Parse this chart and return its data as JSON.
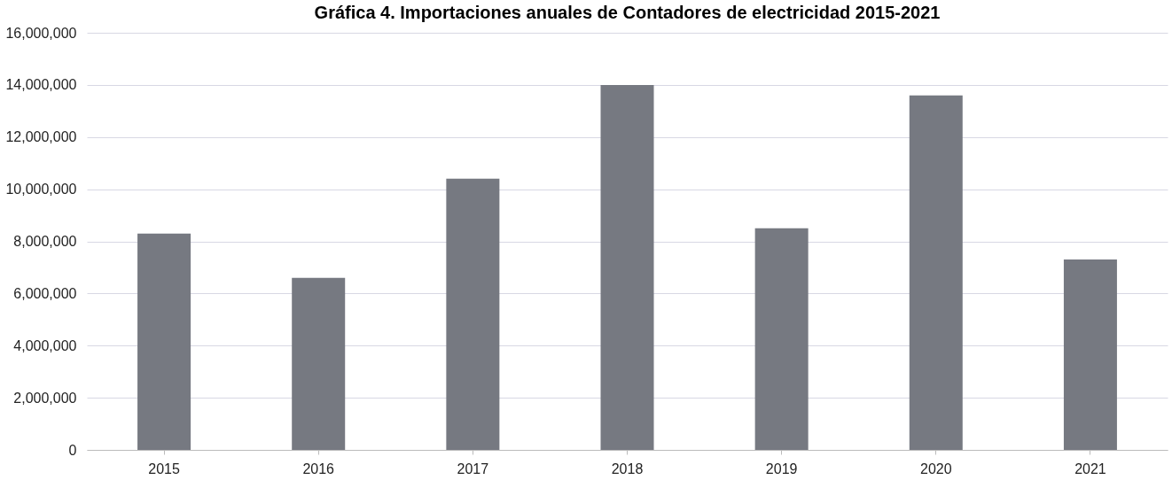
{
  "chart_data": {
    "type": "bar",
    "title": "Gráfica 4. Importaciones anuales de Contadores de electricidad 2015-2021",
    "categories": [
      "2015",
      "2016",
      "2017",
      "2018",
      "2019",
      "2020",
      "2021"
    ],
    "values": [
      8300000,
      6600000,
      10400000,
      14000000,
      8500000,
      13600000,
      7300000
    ],
    "color": "#767981",
    "ylim": [
      0,
      16000000
    ],
    "yticks": [
      0,
      {
        "value": 2000000,
        "label": "2,000,000"
      },
      {
        "value": 4000000,
        "label": "4,000,000"
      },
      {
        "value": 6000000,
        "label": "6,000,000"
      },
      {
        "value": 8000000,
        "label": "8,000,000"
      },
      {
        "value": 10000000,
        "label": "10,000,000"
      },
      {
        "value": 12000000,
        "label": "12,000,000"
      },
      {
        "value": 14000000,
        "label": "14,000,000"
      },
      {
        "value": 16000000,
        "label": "16,000,000"
      }
    ],
    "grid": "y"
  }
}
